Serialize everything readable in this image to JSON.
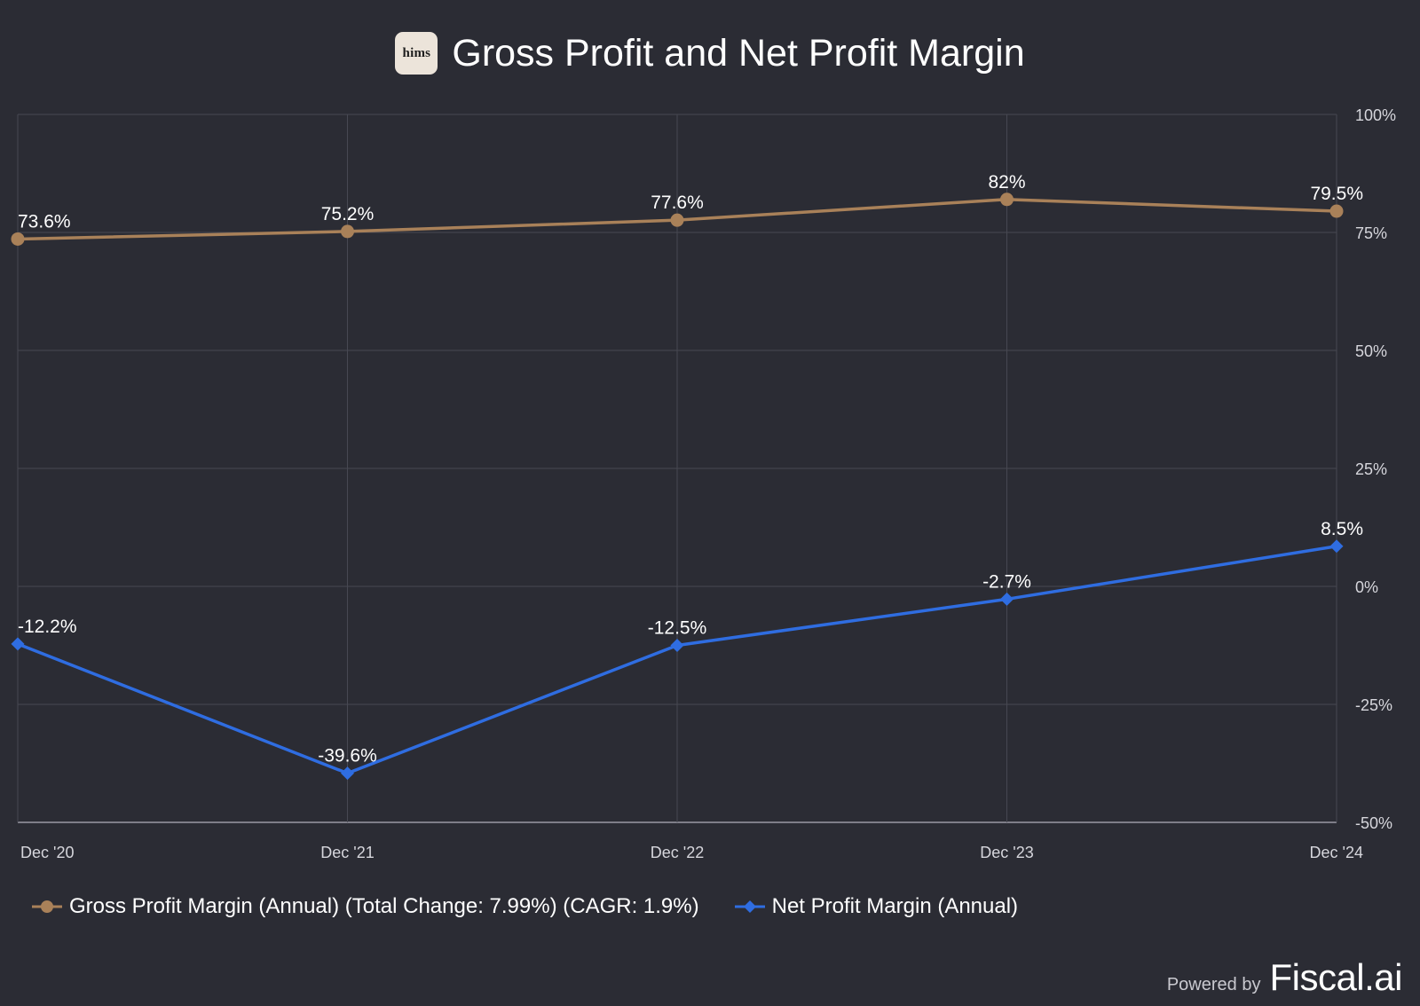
{
  "header": {
    "logo_text": "hims",
    "title": "Gross Profit and Net Profit Margin"
  },
  "footer": {
    "powered_by": "Powered by",
    "brand": "Fiscal.ai"
  },
  "colors": {
    "background": "#2b2c34",
    "gross": "#a98159",
    "net": "#2f6de1",
    "grid": "#474852",
    "text": "#ffffff",
    "axis_text": "#d6d6dc"
  },
  "chart_data": {
    "type": "line",
    "title": "Gross Profit and Net Profit Margin",
    "categories": [
      "Dec '20",
      "Dec '21",
      "Dec '22",
      "Dec '23",
      "Dec '24"
    ],
    "y_axis": {
      "position": "right",
      "min": -50,
      "max": 100,
      "ticks": [
        100,
        75,
        50,
        25,
        0,
        -25,
        -50
      ],
      "tick_labels": [
        "100%",
        "75%",
        "50%",
        "25%",
        "0%",
        "-25%",
        "-50%"
      ]
    },
    "grid": true,
    "legend_position": "bottom-left",
    "series": [
      {
        "name": "Gross Profit Margin (Annual) (Total Change: 7.99%) (CAGR: 1.9%)",
        "marker": "circle",
        "color": "#a98159",
        "values": [
          73.6,
          75.2,
          77.6,
          82,
          79.5
        ],
        "labels": [
          "73.6%",
          "75.2%",
          "77.6%",
          "82%",
          "79.5%"
        ]
      },
      {
        "name": "Net Profit Margin (Annual)",
        "marker": "diamond",
        "color": "#2f6de1",
        "values": [
          -12.2,
          -39.6,
          -12.5,
          -2.7,
          8.5
        ],
        "labels": [
          "-12.2%",
          "-39.6%",
          "-12.5%",
          "-2.7%",
          "8.5%"
        ]
      }
    ]
  }
}
